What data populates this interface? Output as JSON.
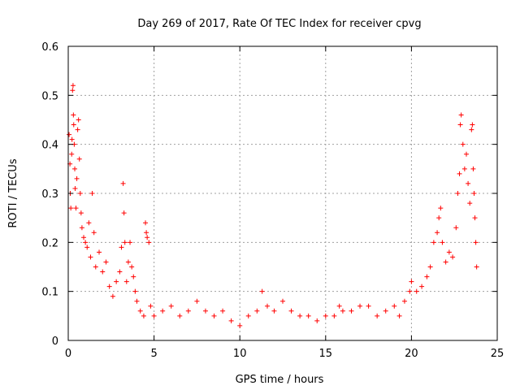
{
  "chart_data": {
    "type": "scatter",
    "title": "Day 269 of 2017, Rate Of TEC Index for receiver cpvg",
    "xlabel": "GPS time / hours",
    "ylabel": "ROTI / TECUs",
    "xlim": [
      0,
      25
    ],
    "ylim": [
      0,
      0.6
    ],
    "x_ticks": [
      "0",
      "5",
      "10",
      "15",
      "20",
      "25"
    ],
    "y_ticks": [
      "0",
      "0.1",
      "0.2",
      "0.3",
      "0.4",
      "0.5",
      "0.6"
    ],
    "grid": true,
    "marker": "plus",
    "color": "#ff0000",
    "series": [
      {
        "points": [
          [
            0.05,
            0.42
          ],
          [
            0.1,
            0.36
          ],
          [
            0.12,
            0.3
          ],
          [
            0.15,
            0.27
          ],
          [
            0.2,
            0.38
          ],
          [
            0.22,
            0.41
          ],
          [
            0.25,
            0.51
          ],
          [
            0.28,
            0.52
          ],
          [
            0.3,
            0.46
          ],
          [
            0.32,
            0.44
          ],
          [
            0.35,
            0.4
          ],
          [
            0.38,
            0.35
          ],
          [
            0.4,
            0.31
          ],
          [
            0.45,
            0.27
          ],
          [
            0.5,
            0.33
          ],
          [
            0.55,
            0.43
          ],
          [
            0.6,
            0.45
          ],
          [
            0.65,
            0.37
          ],
          [
            0.7,
            0.3
          ],
          [
            0.75,
            0.26
          ],
          [
            0.8,
            0.23
          ],
          [
            0.9,
            0.21
          ],
          [
            1.0,
            0.2
          ],
          [
            1.1,
            0.19
          ],
          [
            1.2,
            0.24
          ],
          [
            1.3,
            0.17
          ],
          [
            1.4,
            0.3
          ],
          [
            1.5,
            0.22
          ],
          [
            1.6,
            0.15
          ],
          [
            1.8,
            0.18
          ],
          [
            2.0,
            0.14
          ],
          [
            2.2,
            0.16
          ],
          [
            2.4,
            0.11
          ],
          [
            2.6,
            0.09
          ],
          [
            2.8,
            0.12
          ],
          [
            3.0,
            0.14
          ],
          [
            3.1,
            0.19
          ],
          [
            3.2,
            0.32
          ],
          [
            3.25,
            0.26
          ],
          [
            3.3,
            0.2
          ],
          [
            3.4,
            0.12
          ],
          [
            3.5,
            0.16
          ],
          [
            3.6,
            0.2
          ],
          [
            3.7,
            0.15
          ],
          [
            3.8,
            0.13
          ],
          [
            3.9,
            0.1
          ],
          [
            4.0,
            0.08
          ],
          [
            4.2,
            0.06
          ],
          [
            4.4,
            0.05
          ],
          [
            4.5,
            0.24
          ],
          [
            4.55,
            0.22
          ],
          [
            4.6,
            0.21
          ],
          [
            4.7,
            0.2
          ],
          [
            4.8,
            0.07
          ],
          [
            5.0,
            0.05
          ],
          [
            5.5,
            0.06
          ],
          [
            6.0,
            0.07
          ],
          [
            6.5,
            0.05
          ],
          [
            7.0,
            0.06
          ],
          [
            7.5,
            0.08
          ],
          [
            8.0,
            0.06
          ],
          [
            8.5,
            0.05
          ],
          [
            9.0,
            0.06
          ],
          [
            9.5,
            0.04
          ],
          [
            10.0,
            0.03
          ],
          [
            10.5,
            0.05
          ],
          [
            11.0,
            0.06
          ],
          [
            11.3,
            0.1
          ],
          [
            11.6,
            0.07
          ],
          [
            12.0,
            0.06
          ],
          [
            12.5,
            0.08
          ],
          [
            13.0,
            0.06
          ],
          [
            13.5,
            0.05
          ],
          [
            14.0,
            0.05
          ],
          [
            14.5,
            0.04
          ],
          [
            15.0,
            0.05
          ],
          [
            15.5,
            0.05
          ],
          [
            15.8,
            0.07
          ],
          [
            16.0,
            0.06
          ],
          [
            16.5,
            0.06
          ],
          [
            17.0,
            0.07
          ],
          [
            17.5,
            0.07
          ],
          [
            18.0,
            0.05
          ],
          [
            18.5,
            0.06
          ],
          [
            19.0,
            0.07
          ],
          [
            19.3,
            0.05
          ],
          [
            19.6,
            0.08
          ],
          [
            19.9,
            0.1
          ],
          [
            20.0,
            0.12
          ],
          [
            20.3,
            0.1
          ],
          [
            20.6,
            0.11
          ],
          [
            20.9,
            0.13
          ],
          [
            21.1,
            0.15
          ],
          [
            21.3,
            0.2
          ],
          [
            21.5,
            0.22
          ],
          [
            21.6,
            0.25
          ],
          [
            21.7,
            0.27
          ],
          [
            21.8,
            0.2
          ],
          [
            22.0,
            0.16
          ],
          [
            22.2,
            0.18
          ],
          [
            22.4,
            0.17
          ],
          [
            22.6,
            0.23
          ],
          [
            22.7,
            0.3
          ],
          [
            22.8,
            0.34
          ],
          [
            22.85,
            0.44
          ],
          [
            22.9,
            0.46
          ],
          [
            23.0,
            0.4
          ],
          [
            23.1,
            0.35
          ],
          [
            23.2,
            0.38
          ],
          [
            23.3,
            0.32
          ],
          [
            23.4,
            0.28
          ],
          [
            23.5,
            0.43
          ],
          [
            23.55,
            0.44
          ],
          [
            23.6,
            0.35
          ],
          [
            23.65,
            0.3
          ],
          [
            23.7,
            0.25
          ],
          [
            23.75,
            0.2
          ],
          [
            23.8,
            0.15
          ]
        ]
      }
    ]
  }
}
